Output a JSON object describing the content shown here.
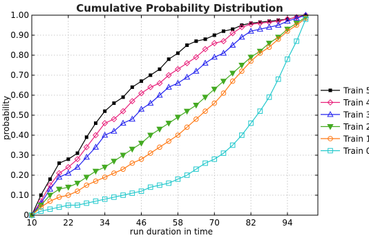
{
  "chart_data": {
    "type": "line",
    "title": "Cumulative Probability Distribution",
    "xlabel": "run duration in time",
    "ylabel": "probability",
    "xlim": [
      10,
      104
    ],
    "ylim": [
      0,
      1.0
    ],
    "xticks": [
      10,
      22,
      34,
      46,
      58,
      70,
      82,
      94
    ],
    "xtick_labels": [
      "10",
      "22",
      "34",
      "46",
      "58",
      "70",
      "82",
      "94"
    ],
    "yticks": [
      0,
      0.1,
      0.2,
      0.3,
      0.4,
      0.5,
      0.6,
      0.7,
      0.8,
      0.9,
      1.0
    ],
    "ytick_labels": [
      "0",
      "0.10",
      "0.20",
      "0.30",
      "0.40",
      "0.50",
      "0.60",
      "0.70",
      "0.80",
      "0.90",
      "1.00"
    ],
    "grid": true,
    "legend_position": "right",
    "series": [
      {
        "name": "Train 5",
        "color": "#000000",
        "marker": "square-filled",
        "x": [
          10,
          13,
          16,
          19,
          22,
          25,
          28,
          31,
          34,
          37,
          40,
          43,
          46,
          49,
          52,
          55,
          58,
          61,
          64,
          67,
          70,
          73,
          76,
          79,
          82,
          85,
          88,
          91,
          94,
          97,
          100
        ],
        "y": [
          0.0,
          0.1,
          0.18,
          0.26,
          0.28,
          0.31,
          0.39,
          0.46,
          0.52,
          0.56,
          0.59,
          0.64,
          0.67,
          0.7,
          0.73,
          0.78,
          0.81,
          0.85,
          0.87,
          0.88,
          0.9,
          0.92,
          0.93,
          0.95,
          0.96,
          0.965,
          0.97,
          0.975,
          0.98,
          0.99,
          1.0
        ]
      },
      {
        "name": "Train 4",
        "color": "#e8207a",
        "marker": "diamond",
        "x": [
          10,
          13,
          16,
          19,
          22,
          25,
          28,
          31,
          34,
          37,
          40,
          43,
          46,
          49,
          52,
          55,
          58,
          61,
          64,
          67,
          70,
          73,
          76,
          79,
          82,
          85,
          88,
          91,
          94,
          97,
          100
        ],
        "y": [
          0.0,
          0.07,
          0.15,
          0.21,
          0.24,
          0.28,
          0.34,
          0.4,
          0.46,
          0.48,
          0.52,
          0.57,
          0.61,
          0.64,
          0.66,
          0.7,
          0.73,
          0.76,
          0.79,
          0.83,
          0.86,
          0.87,
          0.91,
          0.94,
          0.955,
          0.96,
          0.965,
          0.97,
          0.98,
          0.99,
          1.0
        ]
      },
      {
        "name": "Train 3",
        "color": "#2222ee",
        "marker": "triangle-up",
        "x": [
          10,
          13,
          16,
          19,
          22,
          25,
          28,
          31,
          34,
          37,
          40,
          43,
          46,
          49,
          52,
          55,
          58,
          61,
          64,
          67,
          70,
          73,
          76,
          79,
          82,
          85,
          88,
          91,
          94,
          97,
          100
        ],
        "y": [
          0.0,
          0.06,
          0.13,
          0.19,
          0.21,
          0.24,
          0.29,
          0.34,
          0.4,
          0.42,
          0.46,
          0.48,
          0.53,
          0.56,
          0.6,
          0.64,
          0.66,
          0.69,
          0.72,
          0.76,
          0.79,
          0.81,
          0.85,
          0.89,
          0.92,
          0.93,
          0.94,
          0.95,
          0.97,
          0.985,
          1.0
        ]
      },
      {
        "name": "Train 2",
        "color": "#44aa22",
        "marker": "triangle-down-filled",
        "x": [
          10,
          13,
          16,
          19,
          22,
          25,
          28,
          31,
          34,
          37,
          40,
          43,
          46,
          49,
          52,
          55,
          58,
          61,
          64,
          67,
          70,
          73,
          76,
          79,
          82,
          85,
          88,
          91,
          94,
          97,
          100
        ],
        "y": [
          0.0,
          0.05,
          0.1,
          0.13,
          0.14,
          0.16,
          0.19,
          0.22,
          0.24,
          0.27,
          0.3,
          0.33,
          0.36,
          0.4,
          0.43,
          0.46,
          0.49,
          0.52,
          0.55,
          0.59,
          0.63,
          0.67,
          0.71,
          0.75,
          0.79,
          0.82,
          0.86,
          0.89,
          0.93,
          0.96,
          0.99
        ]
      },
      {
        "name": "Train 1",
        "color": "#ff7711",
        "marker": "circle",
        "x": [
          10,
          13,
          16,
          19,
          22,
          25,
          28,
          31,
          34,
          37,
          40,
          43,
          46,
          49,
          52,
          55,
          58,
          61,
          64,
          67,
          70,
          73,
          76,
          79,
          82,
          85,
          88,
          91,
          94,
          97,
          100
        ],
        "y": [
          0.0,
          0.04,
          0.07,
          0.09,
          0.1,
          0.12,
          0.15,
          0.17,
          0.19,
          0.21,
          0.23,
          0.26,
          0.28,
          0.31,
          0.34,
          0.37,
          0.4,
          0.44,
          0.48,
          0.52,
          0.56,
          0.61,
          0.67,
          0.72,
          0.77,
          0.81,
          0.84,
          0.88,
          0.92,
          0.95,
          0.985
        ]
      },
      {
        "name": "Train 0",
        "color": "#22c8cc",
        "marker": "square",
        "x": [
          10,
          13,
          16,
          19,
          22,
          25,
          28,
          31,
          34,
          37,
          40,
          43,
          46,
          49,
          52,
          55,
          58,
          61,
          64,
          67,
          70,
          73,
          76,
          79,
          82,
          85,
          88,
          91,
          94,
          97,
          100
        ],
        "y": [
          0.0,
          0.02,
          0.03,
          0.04,
          0.05,
          0.05,
          0.06,
          0.07,
          0.08,
          0.09,
          0.1,
          0.11,
          0.12,
          0.14,
          0.15,
          0.16,
          0.18,
          0.2,
          0.23,
          0.26,
          0.28,
          0.31,
          0.35,
          0.4,
          0.46,
          0.52,
          0.59,
          0.68,
          0.78,
          0.87,
          0.98
        ]
      }
    ]
  }
}
